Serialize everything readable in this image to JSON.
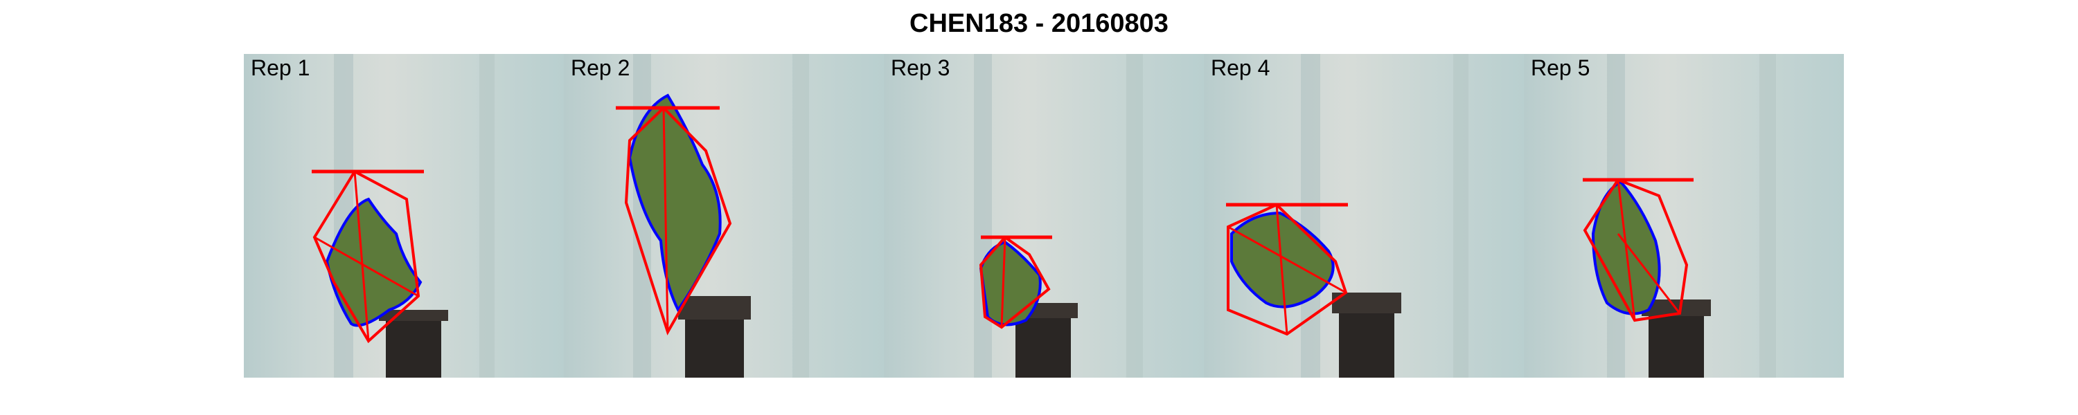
{
  "title": "CHEN183 - 20160803",
  "panels": [
    {
      "label": "Rep 1"
    },
    {
      "label": "Rep 2"
    },
    {
      "label": "Rep 3"
    },
    {
      "label": "Rep 4"
    },
    {
      "label": "Rep 5"
    }
  ],
  "colors": {
    "hull": "#ff0000",
    "outline": "#0000ff",
    "leaf": "#5c7a3a",
    "pot": "#2a2624"
  }
}
